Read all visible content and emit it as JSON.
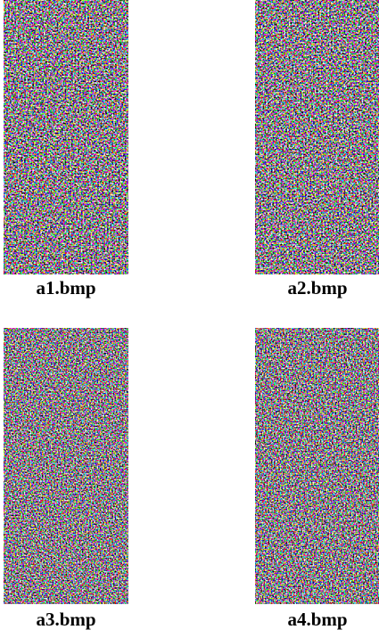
{
  "figure": {
    "images": [
      {
        "caption": "a1.bmp"
      },
      {
        "caption": "a2.bmp"
      },
      {
        "caption": "a3.bmp"
      },
      {
        "caption": "a4.bmp"
      }
    ]
  }
}
